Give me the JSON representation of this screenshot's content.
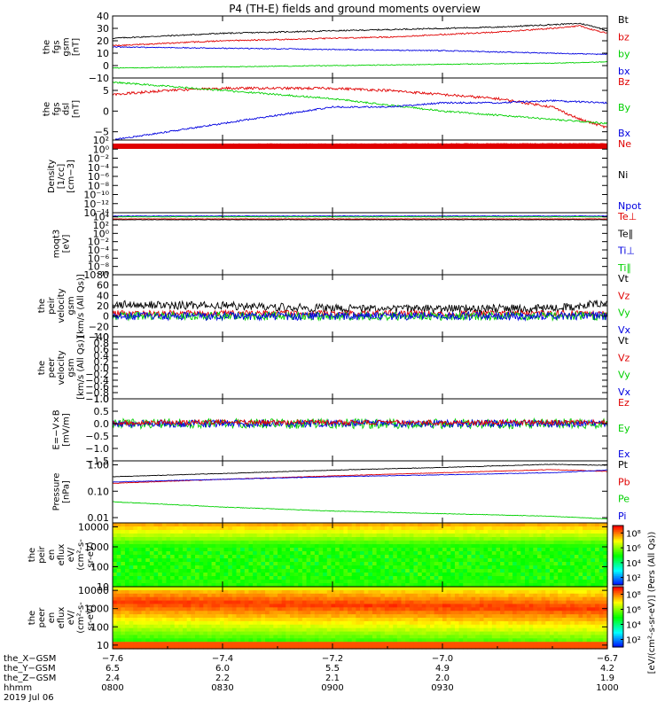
{
  "title": "P4 (TH-E) fields and ground moments overview",
  "colors": {
    "black": "#000000",
    "red": "#e00000",
    "green": "#00d000",
    "blue": "#0000e0",
    "frame": "#000000"
  },
  "chart_data": [
    {
      "type": "line",
      "name": "fgs-gsm",
      "ylabel_lines": [
        "the",
        "fgs",
        "gsm",
        "[nT]"
      ],
      "ylim": [
        -10,
        40
      ],
      "yticks": [
        {
          "v": 40,
          "t": "40"
        },
        {
          "v": 30,
          "t": "30"
        },
        {
          "v": 20,
          "t": "20"
        },
        {
          "v": 10,
          "t": "10"
        },
        {
          "v": 0,
          "t": "0"
        },
        {
          "v": -10,
          "t": "−10"
        }
      ],
      "legend": [
        {
          "label": "Bt",
          "color": "black"
        },
        {
          "label": "bz",
          "color": "red"
        },
        {
          "label": "by",
          "color": "green"
        },
        {
          "label": "bx",
          "color": "blue"
        }
      ],
      "series": [
        {
          "name": "Bt",
          "color": "black",
          "noise": 0.5,
          "x": [
            -7.6,
            -7.5,
            -7.4,
            -7.3,
            -7.2,
            -7.1,
            -7.0,
            -6.9,
            -6.8,
            -6.75,
            -6.72,
            -6.7
          ],
          "values": [
            22,
            24,
            26,
            27,
            28,
            29,
            30,
            31,
            33,
            34,
            31,
            28
          ]
        },
        {
          "name": "bz",
          "color": "red",
          "noise": 0.5,
          "x": [
            -7.6,
            -7.5,
            -7.4,
            -7.3,
            -7.2,
            -7.1,
            -7.0,
            -6.9,
            -6.8,
            -6.75,
            -6.72,
            -6.7
          ],
          "values": [
            16,
            18,
            20,
            21,
            22,
            23,
            25,
            27,
            30,
            32,
            28,
            26
          ]
        },
        {
          "name": "by",
          "color": "green",
          "noise": 0.3,
          "x": [
            -7.6,
            -7.4,
            -7.2,
            -7.0,
            -6.8,
            -6.7
          ],
          "values": [
            -2,
            -1,
            0,
            1,
            2,
            3
          ]
        },
        {
          "name": "bx",
          "color": "blue",
          "noise": 0.4,
          "x": [
            -7.6,
            -7.4,
            -7.2,
            -7.0,
            -6.8,
            -6.7
          ],
          "values": [
            15,
            14,
            13,
            12,
            10,
            9
          ]
        }
      ]
    },
    {
      "type": "line",
      "name": "fgs-dsl",
      "ylabel_lines": [
        "the",
        "fgs",
        "dsl",
        "[nT]"
      ],
      "ylim": [
        -7,
        8
      ],
      "yticks": [
        {
          "v": 5,
          "t": "5"
        },
        {
          "v": 0,
          "t": "0"
        },
        {
          "v": -5,
          "t": "−5"
        }
      ],
      "legend": [
        {
          "label": "Bz",
          "color": "red"
        },
        {
          "label": "By",
          "color": "green"
        },
        {
          "label": "Bx",
          "color": "blue"
        }
      ],
      "series": [
        {
          "name": "Bz",
          "color": "red",
          "noise": 0.3,
          "x": [
            -7.6,
            -7.5,
            -7.4,
            -7.3,
            -7.2,
            -7.1,
            -7.0,
            -6.9,
            -6.8,
            -6.75,
            -6.7
          ],
          "values": [
            4,
            5,
            5.5,
            5.5,
            5.5,
            5,
            4,
            3,
            1,
            -2,
            -4
          ]
        },
        {
          "name": "By",
          "color": "green",
          "noise": 0.2,
          "x": [
            -7.6,
            -7.5,
            -7.4,
            -7.3,
            -7.2,
            -7.1,
            -7.0,
            -6.9,
            -6.8,
            -6.7
          ],
          "values": [
            7,
            6,
            5,
            4,
            3,
            1.5,
            0,
            -1,
            -2,
            -3
          ]
        },
        {
          "name": "Bx",
          "color": "blue",
          "noise": 0.2,
          "x": [
            -7.6,
            -7.5,
            -7.4,
            -7.3,
            -7.2,
            -7.1,
            -7.0,
            -6.9,
            -6.8,
            -6.7
          ],
          "values": [
            -7,
            -5,
            -3,
            -1,
            1,
            1,
            2,
            2,
            2.5,
            2
          ]
        }
      ]
    },
    {
      "type": "line",
      "name": "density",
      "ylabel_lines": [
        "Density",
        "[1/cc]",
        "[cm−3]"
      ],
      "ylog": true,
      "ylim": [
        -14,
        2
      ],
      "yticks": [
        {
          "v": 2,
          "t": "10²"
        },
        {
          "v": 0,
          "t": "10⁰"
        },
        {
          "v": -2,
          "t": "10⁻²"
        },
        {
          "v": -4,
          "t": "10⁻⁴"
        },
        {
          "v": -6,
          "t": "10⁻⁶"
        },
        {
          "v": -8,
          "t": "10⁻⁸"
        },
        {
          "v": -10,
          "t": "10⁻¹⁰"
        },
        {
          "v": -12,
          "t": "10⁻¹²"
        },
        {
          "v": -14,
          "t": "10⁻¹⁴"
        }
      ],
      "legend": [
        {
          "label": "Ne",
          "color": "red"
        },
        {
          "label": "Ni",
          "color": "black"
        },
        {
          "label": "Npot",
          "color": "blue"
        }
      ],
      "series": [
        {
          "name": "Ne",
          "color": "red",
          "noise": 0.05,
          "x": [
            -7.6,
            -6.7
          ],
          "values": [
            1.1,
            1.2
          ]
        },
        {
          "name": "Ni",
          "color": "black",
          "noise": 0.05,
          "x": [
            -7.6,
            -6.7
          ],
          "values": [
            1.0,
            1.1
          ]
        },
        {
          "name": "Npot",
          "color": "blue",
          "noise": 0.05,
          "x": [
            -7.6,
            -6.7
          ],
          "values": [
            0.9,
            1.0
          ]
        }
      ]
    },
    {
      "type": "line",
      "name": "temperature",
      "ylabel_lines": [
        "moqt3",
        "[eV]"
      ],
      "ylog": true,
      "ylim": [
        -10,
        5
      ],
      "yticks": [
        {
          "v": 4,
          "t": "10⁴"
        },
        {
          "v": 2,
          "t": "10²"
        },
        {
          "v": 0,
          "t": "10⁰"
        },
        {
          "v": -2,
          "t": "10⁻²"
        },
        {
          "v": -4,
          "t": "10⁻⁴"
        },
        {
          "v": -6,
          "t": "10⁻⁶"
        },
        {
          "v": -8,
          "t": "10⁻⁸"
        },
        {
          "v": -10,
          "t": "10⁻¹⁰"
        }
      ],
      "legend": [
        {
          "label": "Te⊥",
          "color": "red"
        },
        {
          "label": "Te∥",
          "color": "black"
        },
        {
          "label": "Ti⊥",
          "color": "blue"
        },
        {
          "label": "Ti∥",
          "color": "green"
        }
      ],
      "series": [
        {
          "name": "Te⊥",
          "color": "red",
          "noise": 0.05,
          "x": [
            -7.6,
            -6.7
          ],
          "values": [
            3.5,
            3.5
          ]
        },
        {
          "name": "Te∥",
          "color": "black",
          "noise": 0.05,
          "x": [
            -7.6,
            -6.7
          ],
          "values": [
            3.3,
            3.3
          ]
        },
        {
          "name": "Ti⊥",
          "color": "blue",
          "noise": 0.05,
          "x": [
            -7.6,
            -6.7
          ],
          "values": [
            4.2,
            4.2
          ]
        },
        {
          "name": "Ti∥",
          "color": "green",
          "noise": 0.05,
          "x": [
            -7.6,
            -6.7
          ],
          "values": [
            4.0,
            4.0
          ]
        }
      ]
    },
    {
      "type": "line",
      "name": "peir-velocity",
      "ylabel_lines": [
        "the",
        "peir",
        "velocity",
        "gsm",
        "[km/s (All Qs)]"
      ],
      "ylim": [
        -40,
        80
      ],
      "yticks": [
        {
          "v": 80,
          "t": "80"
        },
        {
          "v": 60,
          "t": "60"
        },
        {
          "v": 40,
          "t": "40"
        },
        {
          "v": 20,
          "t": "20"
        },
        {
          "v": 0,
          "t": "0"
        },
        {
          "v": -20,
          "t": "−20"
        },
        {
          "v": -40,
          "t": "−40"
        }
      ],
      "legend": [
        {
          "label": "Vt",
          "color": "black"
        },
        {
          "label": "Vz",
          "color": "red"
        },
        {
          "label": "Vy",
          "color": "green"
        },
        {
          "label": "Vx",
          "color": "blue"
        }
      ],
      "series": [
        {
          "name": "Vt",
          "color": "black",
          "noise": 8,
          "x": [
            -7.6,
            -7.4,
            -7.2,
            -7.0,
            -6.8,
            -6.7
          ],
          "values": [
            22,
            20,
            15,
            14,
            15,
            25
          ]
        },
        {
          "name": "Vz",
          "color": "red",
          "noise": 6,
          "x": [
            -7.6,
            -6.7
          ],
          "values": [
            5,
            5
          ]
        },
        {
          "name": "Vy",
          "color": "green",
          "noise": 8,
          "x": [
            -7.6,
            -6.7
          ],
          "values": [
            0,
            0
          ]
        },
        {
          "name": "Vx",
          "color": "blue",
          "noise": 8,
          "x": [
            -7.6,
            -6.7
          ],
          "values": [
            0,
            0
          ]
        }
      ]
    },
    {
      "type": "line",
      "name": "peer-velocity",
      "ylabel_lines": [
        "the",
        "peer",
        "velocity",
        "gsm",
        "[km/s (All Qs)]"
      ],
      "ylim": [
        -1,
        1
      ],
      "yticks": [
        {
          "v": 1,
          "t": "1.0"
        },
        {
          "v": 0.8,
          "t": "0.8"
        },
        {
          "v": 0.6,
          "t": "0.6"
        },
        {
          "v": 0.4,
          "t": "0.4"
        },
        {
          "v": 0.2,
          "t": "0.2"
        },
        {
          "v": 0,
          "t": "0.0"
        },
        {
          "v": -0.2,
          "t": "−0.2"
        },
        {
          "v": -0.4,
          "t": "−0.4"
        },
        {
          "v": -0.6,
          "t": "−0.6"
        },
        {
          "v": -0.8,
          "t": "−0.8"
        },
        {
          "v": -1,
          "t": "−1.0"
        }
      ],
      "legend": [
        {
          "label": "Vt",
          "color": "black"
        },
        {
          "label": "Vz",
          "color": "red"
        },
        {
          "label": "Vy",
          "color": "green"
        },
        {
          "label": "Vx",
          "color": "blue"
        }
      ],
      "series": []
    },
    {
      "type": "line",
      "name": "e-field",
      "ylabel_lines": [
        "E=−V×B",
        "[mV/m]"
      ],
      "ylim": [
        -1.5,
        1.0
      ],
      "yticks": [
        {
          "v": 1,
          "t": "1.0"
        },
        {
          "v": 0.5,
          "t": "0.5"
        },
        {
          "v": 0,
          "t": "0.0"
        },
        {
          "v": -0.5,
          "t": "−0.5"
        },
        {
          "v": -1,
          "t": "−1.0"
        },
        {
          "v": -1.5,
          "t": "−1.5"
        }
      ],
      "legend": [
        {
          "label": "Ez",
          "color": "red"
        },
        {
          "label": "Ey",
          "color": "green"
        },
        {
          "label": "Ex",
          "color": "blue"
        }
      ],
      "series": [
        {
          "name": "Ey",
          "color": "green",
          "noise": 0.2,
          "x": [
            -7.6,
            -6.7
          ],
          "values": [
            0,
            0
          ]
        },
        {
          "name": "Ex",
          "color": "blue",
          "noise": 0.15,
          "x": [
            -7.6,
            -6.7
          ],
          "values": [
            0,
            0
          ]
        },
        {
          "name": "Ez",
          "color": "red",
          "noise": 0.1,
          "x": [
            -7.6,
            -6.7
          ],
          "values": [
            0.05,
            0.05
          ]
        }
      ]
    },
    {
      "type": "line",
      "name": "pressure",
      "ylabel_lines": [
        "Pressure",
        "[nPa]"
      ],
      "ylog": true,
      "ylim": [
        -2.2,
        0.15
      ],
      "yticks": [
        {
          "v": 0,
          "t": "1.00"
        },
        {
          "v": -1,
          "t": "0.10"
        },
        {
          "v": -2,
          "t": "0.01"
        }
      ],
      "legend": [
        {
          "label": "Pt",
          "color": "black"
        },
        {
          "label": "Pb",
          "color": "red"
        },
        {
          "label": "Pe",
          "color": "green"
        },
        {
          "label": "Pi",
          "color": "blue"
        }
      ],
      "series": [
        {
          "name": "Pt",
          "color": "black",
          "noise": 0.01,
          "x": [
            -7.6,
            -7.4,
            -7.2,
            -7.0,
            -6.8,
            -6.7
          ],
          "values": [
            -0.45,
            -0.33,
            -0.2,
            -0.1,
            0.02,
            -0.02
          ]
        },
        {
          "name": "Pb",
          "color": "red",
          "noise": 0.01,
          "x": [
            -7.6,
            -7.4,
            -7.2,
            -7.0,
            -6.8,
            -6.7
          ],
          "values": [
            -0.7,
            -0.55,
            -0.42,
            -0.3,
            -0.18,
            -0.25
          ]
        },
        {
          "name": "Pi",
          "color": "blue",
          "noise": 0.01,
          "x": [
            -7.6,
            -7.4,
            -7.2,
            -7.0,
            -6.8,
            -6.7
          ],
          "values": [
            -0.65,
            -0.55,
            -0.45,
            -0.38,
            -0.3,
            -0.2
          ]
        },
        {
          "name": "Pe",
          "color": "green",
          "noise": 0.01,
          "x": [
            -7.6,
            -7.4,
            -7.2,
            -7.0,
            -6.8,
            -6.7
          ],
          "values": [
            -1.4,
            -1.6,
            -1.75,
            -1.85,
            -1.95,
            -2.05
          ]
        }
      ]
    },
    {
      "type": "heatmap",
      "name": "peir-en-eflux",
      "ylabel_lines": [
        "the",
        "peir",
        "en",
        "eflux",
        "eV/",
        "(cm²-s-",
        "sr-eV)"
      ],
      "ylog": true,
      "ylim": [
        1,
        4.2
      ],
      "yticks": [
        {
          "v": 4,
          "t": "10000"
        },
        {
          "v": 3,
          "t": "1000"
        },
        {
          "v": 2,
          "t": "100"
        },
        {
          "v": 1,
          "t": "10"
        }
      ]
    },
    {
      "type": "heatmap",
      "name": "peer-en-eflux",
      "ylabel_lines": [
        "the",
        "peer",
        "en",
        "eflux",
        "eV/",
        "(cm²-s-",
        "sr-eV)"
      ],
      "ylog": true,
      "ylim": [
        0.8,
        4.2
      ],
      "yticks": [
        {
          "v": 4,
          "t": "10000"
        },
        {
          "v": 3,
          "t": "1000"
        },
        {
          "v": 2,
          "t": "100"
        },
        {
          "v": 1,
          "t": "10"
        }
      ]
    }
  ],
  "xaxis": {
    "xlim": [
      -7.6,
      -6.7
    ],
    "ticks": [
      {
        "x": -7.6,
        "row1": "−7.6",
        "row2": "6.5",
        "row3": "2.4",
        "row4": "0800"
      },
      {
        "x": -7.4,
        "row1": "−7.4",
        "row2": "6.0",
        "row3": "2.2",
        "row4": "0830"
      },
      {
        "x": -7.2,
        "row1": "−7.2",
        "row2": "5.5",
        "row3": "2.1",
        "row4": "0900"
      },
      {
        "x": -7.0,
        "row1": "−7.0",
        "row2": "4.9",
        "row3": "2.0",
        "row4": "0930"
      },
      {
        "x": -6.7,
        "row1": "−6.7",
        "row2": "4.2",
        "row3": "1.9",
        "row4": "1000"
      }
    ],
    "row_labels": [
      "the_X−GSM",
      "the_Y−GSM",
      "the_Z−GSM",
      "hhmm"
    ],
    "date": "2019 Jul 06"
  },
  "colorbar": {
    "label": "[eV/(cm²-s-sr-eV)] (Pers (All Qs))",
    "ticks1": [
      {
        "v": 8,
        "t": "10⁸"
      },
      {
        "v": 6,
        "t": "10⁶"
      },
      {
        "v": 4,
        "t": "10⁴"
      },
      {
        "v": 2,
        "t": "10²"
      }
    ],
    "ticks2": [
      {
        "v": 8,
        "t": "10⁸"
      },
      {
        "v": 6,
        "t": "10⁶"
      },
      {
        "v": 4,
        "t": "10⁴"
      },
      {
        "v": 2,
        "t": "10²"
      }
    ]
  }
}
